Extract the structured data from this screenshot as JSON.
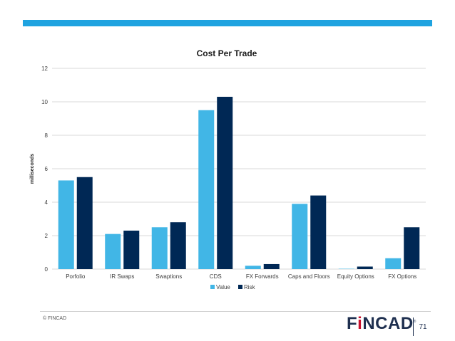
{
  "chart_data": {
    "type": "bar",
    "title": "Cost Per Trade",
    "ylabel": "milliseconds",
    "xlabel": "",
    "ylim": [
      0,
      12
    ],
    "yticks": [
      0,
      2,
      4,
      6,
      8,
      10,
      12
    ],
    "grid": true,
    "legend_position": "bottom",
    "categories": [
      "Porfolio",
      "IR Swaps",
      "Swaptions",
      "CDS",
      "FX Forwards",
      "Caps and Floors",
      "Equity Options",
      "FX Options"
    ],
    "series": [
      {
        "name": "Value",
        "color": "#41b6e6",
        "values": [
          5.3,
          2.1,
          2.5,
          9.5,
          0.2,
          3.9,
          0.02,
          0.65
        ]
      },
      {
        "name": "Risk",
        "color": "#002855",
        "values": [
          5.5,
          2.3,
          2.8,
          10.3,
          0.3,
          4.4,
          0.15,
          2.5
        ]
      }
    ]
  },
  "footer": {
    "copyright": "© FINCAD",
    "page_number": "71"
  },
  "logo": {
    "part1": "F",
    "accent": "i",
    "part2": "NCAD",
    "mark": "®"
  },
  "colors": {
    "accent_bar": "#1fa3e0",
    "grid": "#d9d9d9",
    "axis_text": "#404040"
  }
}
